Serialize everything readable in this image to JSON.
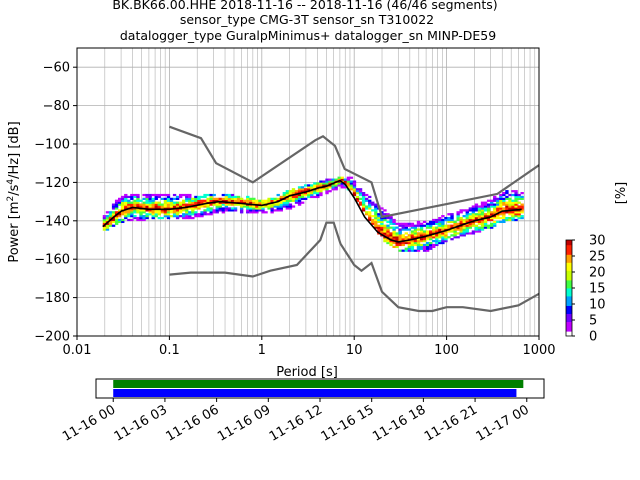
{
  "chart_data": [
    {
      "type": "heatmap",
      "title_lines": [
        "BK.BK66.00.HHE   2018-11-16 -- 2018-11-16  (46/46 segments)",
        "sensor_type CMG-3T sensor_sn T310022",
        "datalogger_type GuralpMinimus+ datalogger_sn MINP-DE59"
      ],
      "xlabel": "Period [s]",
      "ylabel": "Power [m²/s⁴/Hz] [dB]",
      "xscale": "log",
      "xlim": [
        0.01,
        1000
      ],
      "ylim": [
        -200,
        -50
      ],
      "xticks": [
        {
          "value": 0.01,
          "label": "0.01"
        },
        {
          "value": 0.1,
          "label": "0.1"
        },
        {
          "value": 1,
          "label": "1"
        },
        {
          "value": 10,
          "label": "10"
        },
        {
          "value": 100,
          "label": "100"
        },
        {
          "value": 1000,
          "label": "1000"
        }
      ],
      "yticks": [
        {
          "value": -60,
          "label": "−60"
        },
        {
          "value": -80,
          "label": "−80"
        },
        {
          "value": -100,
          "label": "−100"
        },
        {
          "value": -120,
          "label": "−120"
        },
        {
          "value": -140,
          "label": "−140"
        },
        {
          "value": -160,
          "label": "−160"
        },
        {
          "value": -180,
          "label": "−180"
        },
        {
          "value": -200,
          "label": "−200"
        }
      ],
      "grid": true,
      "noise_models": {
        "color": "#666666",
        "high": [
          [
            0.1,
            -91
          ],
          [
            0.22,
            -97
          ],
          [
            0.32,
            -110
          ],
          [
            0.8,
            -120
          ],
          [
            3.8,
            -98
          ],
          [
            4.6,
            -96
          ],
          [
            6.2,
            -101
          ],
          [
            7.9,
            -113
          ],
          [
            15.4,
            -120
          ],
          [
            20,
            -138
          ],
          [
            354.8,
            -126
          ],
          [
            1000,
            -111
          ]
        ],
        "low": [
          [
            0.1,
            -168
          ],
          [
            0.17,
            -167
          ],
          [
            0.4,
            -167
          ],
          [
            0.8,
            -169
          ],
          [
            1.24,
            -166
          ],
          [
            2.4,
            -163
          ],
          [
            4.3,
            -150
          ],
          [
            5,
            -141
          ],
          [
            6,
            -141
          ],
          [
            7.1,
            -152
          ],
          [
            10,
            -163
          ],
          [
            12,
            -166
          ],
          [
            15.4,
            -162
          ],
          [
            20,
            -177
          ],
          [
            30,
            -185
          ],
          [
            50,
            -187
          ],
          [
            70,
            -187
          ],
          [
            100,
            -185
          ],
          [
            150,
            -185
          ],
          [
            300,
            -187
          ],
          [
            600,
            -184
          ],
          [
            1000,
            -178
          ]
        ]
      },
      "mode_line": {
        "color": "#000000",
        "points": [
          [
            0.019,
            -143
          ],
          [
            0.025,
            -138
          ],
          [
            0.03,
            -135
          ],
          [
            0.04,
            -133
          ],
          [
            0.06,
            -134
          ],
          [
            0.1,
            -134
          ],
          [
            0.15,
            -133
          ],
          [
            0.25,
            -131
          ],
          [
            0.35,
            -130
          ],
          [
            0.6,
            -131
          ],
          [
            1.0,
            -132
          ],
          [
            1.5,
            -130
          ],
          [
            2.0,
            -127
          ],
          [
            3.0,
            -125
          ],
          [
            4.0,
            -123
          ],
          [
            5.0,
            -122
          ],
          [
            7.0,
            -119
          ],
          [
            8.0,
            -121
          ],
          [
            10.0,
            -128
          ],
          [
            13.0,
            -138
          ],
          [
            18.0,
            -146
          ],
          [
            25.0,
            -150
          ],
          [
            30.0,
            -151
          ],
          [
            40.0,
            -150
          ],
          [
            60.0,
            -148
          ],
          [
            100.0,
            -145
          ],
          [
            150.0,
            -142
          ],
          [
            200.0,
            -140
          ],
          [
            300.0,
            -138
          ],
          [
            400.0,
            -135
          ],
          [
            650.0,
            -134
          ]
        ]
      },
      "psd_band": {
        "upper": [
          [
            0.019,
            -138
          ],
          [
            0.03,
            -127
          ],
          [
            0.06,
            -127
          ],
          [
            0.1,
            -127
          ],
          [
            0.2,
            -128
          ],
          [
            0.35,
            -127
          ],
          [
            0.7,
            -129
          ],
          [
            1.0,
            -131
          ],
          [
            2.0,
            -125
          ],
          [
            4.0,
            -121
          ],
          [
            7.0,
            -118
          ],
          [
            9.0,
            -119
          ],
          [
            12.0,
            -126
          ],
          [
            20.0,
            -135
          ],
          [
            30.0,
            -143
          ],
          [
            60.0,
            -141
          ],
          [
            100.0,
            -138
          ],
          [
            300.0,
            -130
          ],
          [
            400.0,
            -125
          ],
          [
            650.0,
            -125
          ]
        ],
        "lower": [
          [
            0.019,
            -145
          ],
          [
            0.03,
            -140
          ],
          [
            0.06,
            -139
          ],
          [
            0.1,
            -139
          ],
          [
            0.2,
            -138
          ],
          [
            0.35,
            -135
          ],
          [
            0.7,
            -136
          ],
          [
            1.0,
            -136
          ],
          [
            2.0,
            -133
          ],
          [
            4.0,
            -127
          ],
          [
            7.0,
            -122
          ],
          [
            9.0,
            -124
          ],
          [
            12.0,
            -134
          ],
          [
            20.0,
            -150
          ],
          [
            30.0,
            -156
          ],
          [
            60.0,
            -155
          ],
          [
            100.0,
            -150
          ],
          [
            300.0,
            -143
          ],
          [
            400.0,
            -140
          ],
          [
            650.0,
            -140
          ]
        ]
      },
      "colorbar": {
        "label": "[%]",
        "range": [
          0,
          30
        ],
        "ticks": [
          {
            "value": 0,
            "label": "0"
          },
          {
            "value": 5,
            "label": "5"
          },
          {
            "value": 10,
            "label": "10"
          },
          {
            "value": 15,
            "label": "15"
          },
          {
            "value": 20,
            "label": "20"
          },
          {
            "value": 25,
            "label": "25"
          },
          {
            "value": 30,
            "label": "30"
          }
        ],
        "colors": [
          "#ffffff",
          "#c000ff",
          "#7000ff",
          "#0000ff",
          "#00a0ff",
          "#00ffd0",
          "#40ff40",
          "#c8ff00",
          "#ffff00",
          "#ffa000",
          "#ff2000",
          "#c00000"
        ]
      }
    },
    {
      "type": "timeline",
      "range_hours": [
        -1,
        25
      ],
      "bars": [
        {
          "color": "#008000",
          "start_hour": 0,
          "end_hour": 23.8
        },
        {
          "color": "#0000ff",
          "start_hour": 0,
          "end_hour": 23.4
        }
      ],
      "ticks": [
        {
          "hour": 0,
          "label": "11-16 00"
        },
        {
          "hour": 3,
          "label": "11-16 03"
        },
        {
          "hour": 6,
          "label": "11-16 06"
        },
        {
          "hour": 9,
          "label": "11-16 09"
        },
        {
          "hour": 12,
          "label": "11-16 12"
        },
        {
          "hour": 15,
          "label": "11-16 15"
        },
        {
          "hour": 18,
          "label": "11-16 18"
        },
        {
          "hour": 21,
          "label": "11-16 21"
        },
        {
          "hour": 24,
          "label": "11-17 00"
        }
      ]
    }
  ]
}
